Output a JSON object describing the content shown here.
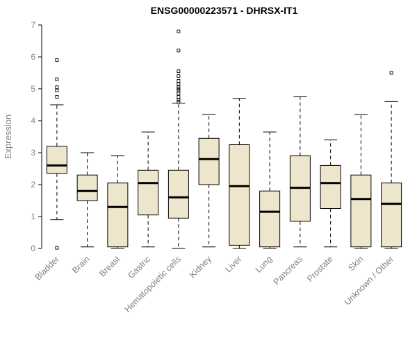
{
  "chart": {
    "title": "ENSG00000223571 - DHRSX-IT1",
    "ylabel": "Expression"
  },
  "chart_data": {
    "type": "boxplot",
    "title": "ENSG00000223571 - DHRSX-IT1",
    "xlabel": "",
    "ylabel": "Expression",
    "ylim": [
      0,
      7
    ],
    "yticks": [
      0,
      1,
      2,
      3,
      4,
      5,
      6,
      7
    ],
    "grid": false,
    "legend": false,
    "box_fill": "#EDE6CC",
    "box_stroke": "#000000",
    "median_color": "#000000",
    "label_color": "#808080",
    "title_color": "#000000",
    "categories": [
      "Bladder",
      "Brain",
      "Breast",
      "Gastric",
      "Hematopoietic cells",
      "Kidney",
      "Liver",
      "Lung",
      "Pancreas",
      "Prostate",
      "Skin",
      "Unknown / Other"
    ],
    "series": [
      {
        "name": "Bladder",
        "low": 0.9,
        "q1": 2.35,
        "median": 2.6,
        "q3": 3.2,
        "high": 4.5,
        "outliers": [
          0.02,
          4.75,
          4.95,
          5.05,
          5.3,
          5.9
        ]
      },
      {
        "name": "Brain",
        "low": 0.05,
        "q1": 1.5,
        "median": 1.8,
        "q3": 2.3,
        "high": 3.0,
        "outliers": []
      },
      {
        "name": "Breast",
        "low": 0.0,
        "q1": 0.05,
        "median": 1.3,
        "q3": 2.05,
        "high": 2.9,
        "outliers": []
      },
      {
        "name": "Gastric",
        "low": 0.05,
        "q1": 1.05,
        "median": 2.05,
        "q3": 2.45,
        "high": 3.65,
        "outliers": []
      },
      {
        "name": "Hematopoietic cells",
        "low": 0.0,
        "q1": 0.95,
        "median": 1.6,
        "q3": 2.45,
        "high": 4.55,
        "outliers": [
          4.6,
          4.65,
          4.75,
          4.85,
          4.95,
          5.0,
          5.05,
          5.15,
          5.25,
          5.4,
          5.55,
          6.2,
          6.8
        ]
      },
      {
        "name": "Kidney",
        "low": 0.05,
        "q1": 2.0,
        "median": 2.8,
        "q3": 3.45,
        "high": 4.2,
        "outliers": []
      },
      {
        "name": "Liver",
        "low": 0.0,
        "q1": 0.1,
        "median": 1.95,
        "q3": 3.25,
        "high": 4.7,
        "outliers": []
      },
      {
        "name": "Lung",
        "low": 0.0,
        "q1": 0.05,
        "median": 1.15,
        "q3": 1.8,
        "high": 3.65,
        "outliers": []
      },
      {
        "name": "Pancreas",
        "low": 0.05,
        "q1": 0.85,
        "median": 1.9,
        "q3": 2.9,
        "high": 4.75,
        "outliers": []
      },
      {
        "name": "Prostate",
        "low": 0.05,
        "q1": 1.25,
        "median": 2.05,
        "q3": 2.6,
        "high": 3.4,
        "outliers": []
      },
      {
        "name": "Skin",
        "low": 0.0,
        "q1": 0.05,
        "median": 1.55,
        "q3": 2.3,
        "high": 4.2,
        "outliers": []
      },
      {
        "name": "Unknown / Other",
        "low": 0.0,
        "q1": 0.05,
        "median": 1.4,
        "q3": 2.05,
        "high": 4.6,
        "outliers": [
          5.5
        ]
      }
    ]
  }
}
